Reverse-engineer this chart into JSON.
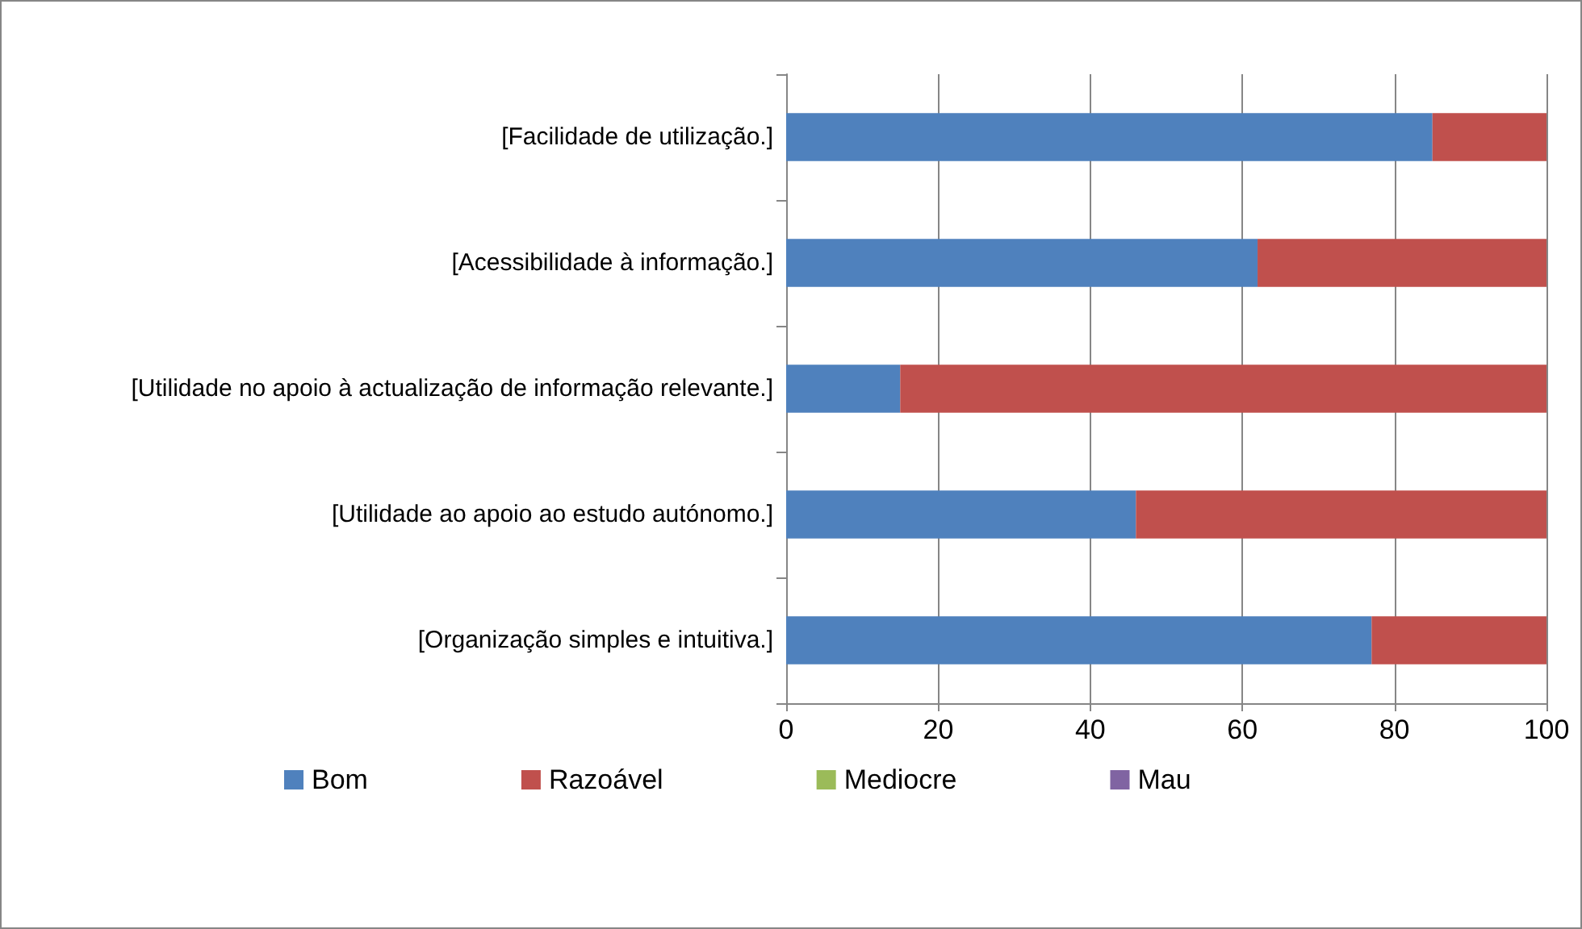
{
  "chart_data": {
    "type": "bar",
    "orientation": "horizontal",
    "stacked": true,
    "categories": [
      "[Facilidade de utilização.]",
      "[Acessibilidade à informação.]",
      "[Utilidade no apoio à actualização de informação relevante.]",
      "[Utilidade ao apoio ao estudo autónomo.]",
      "[Organização simples e intuitiva.]"
    ],
    "series": [
      {
        "name": "Bom",
        "color": "#4f81bd",
        "values": [
          85,
          62,
          15,
          46,
          77
        ]
      },
      {
        "name": "Razoável",
        "color": "#c0504d",
        "values": [
          15,
          38,
          85,
          54,
          23
        ]
      },
      {
        "name": "Mediocre",
        "color": "#9bbb59",
        "values": [
          0,
          0,
          0,
          0,
          0
        ]
      },
      {
        "name": "Mau",
        "color": "#8064a2",
        "values": [
          0,
          0,
          0,
          0,
          0
        ]
      }
    ],
    "xlim": [
      0,
      100
    ],
    "xticks": [
      0,
      20,
      40,
      60,
      80,
      100
    ],
    "grid": "x",
    "legend": "bottom"
  }
}
